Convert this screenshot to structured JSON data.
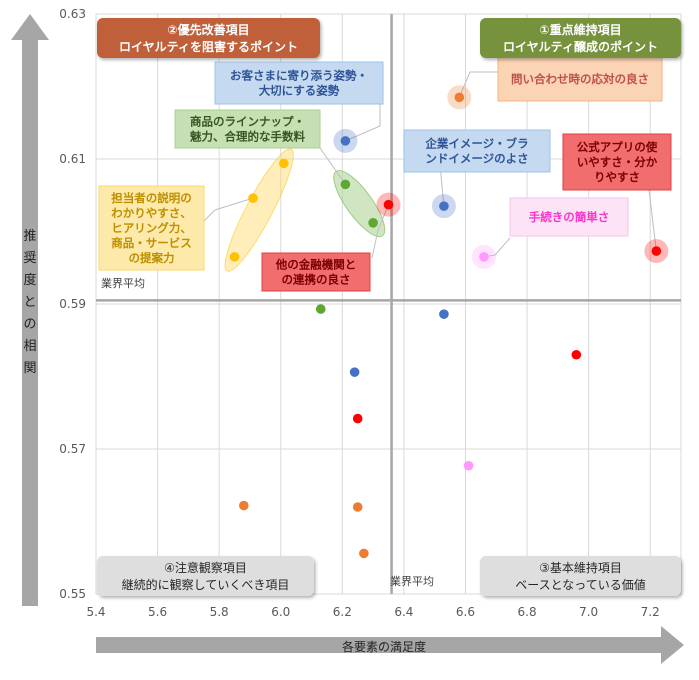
{
  "chart_data": {
    "type": "scatter",
    "xlabel": "各要素の満足度",
    "ylabel": "推奨度との相関",
    "xlim": [
      5.4,
      7.3
    ],
    "ylim": [
      0.55,
      0.63
    ],
    "xticks": [
      "5.4",
      "5.6",
      "5.8",
      "6.0",
      "6.2",
      "6.4",
      "6.6",
      "6.8",
      "7.0",
      "7.2"
    ],
    "yticks": [
      "0.55",
      "0.57",
      "0.59",
      "0.61",
      "0.63"
    ],
    "xtick_values": [
      5.4,
      5.6,
      5.8,
      6.0,
      6.2,
      6.4,
      6.6,
      6.8,
      7.0,
      7.2
    ],
    "ytick_values": [
      0.55,
      0.57,
      0.59,
      0.61,
      0.63
    ],
    "industry_avg_x": 6.36,
    "industry_avg_y": 0.5905,
    "avg_label_h": "業界平均",
    "avg_label_v": "業界平均",
    "quadrants": [
      {
        "line1": "①重点維持項目",
        "line2": "ロイヤルティ醸成のポイント",
        "color": "#76923c",
        "pos": "top-right"
      },
      {
        "line1": "②優先改善項目",
        "line2": "ロイヤルティを阻害するポイント",
        "color": "#c0603a",
        "pos": "top-left"
      },
      {
        "line1": "③基本維持項目",
        "line2": "ベースとなっている価値",
        "color": "#dedede",
        "pos": "bottom-right"
      },
      {
        "line1": "④注意観察項目",
        "line2": "継続的に観察していくべき項目",
        "color": "#dedede",
        "pos": "bottom-left"
      }
    ],
    "points": [
      {
        "x": 6.58,
        "y": 0.6185,
        "color": "#ed7d31",
        "halo": true
      },
      {
        "x": 7.22,
        "y": 0.5973,
        "color": "#ff0000",
        "halo": true
      },
      {
        "x": 6.53,
        "y": 0.6035,
        "color": "#4472c4",
        "halo": true
      },
      {
        "x": 6.66,
        "y": 0.5965,
        "color": "#ff99ff",
        "halo": true
      },
      {
        "x": 6.21,
        "y": 0.6125,
        "color": "#4472c4",
        "halo": true
      },
      {
        "x": 6.35,
        "y": 0.6037,
        "color": "#ff0000",
        "halo": true
      },
      {
        "x": 6.21,
        "y": 0.6065,
        "color": "#5ca831",
        "halo": false
      },
      {
        "x": 6.3,
        "y": 0.6012,
        "color": "#5ca831",
        "halo": false
      },
      {
        "x": 6.01,
        "y": 0.6094,
        "color": "#ffc000",
        "halo": false
      },
      {
        "x": 5.91,
        "y": 0.6046,
        "color": "#ffc000",
        "halo": false
      },
      {
        "x": 5.85,
        "y": 0.5965,
        "color": "#ffc000",
        "halo": false
      },
      {
        "x": 6.13,
        "y": 0.5893,
        "color": "#5ca831",
        "halo": false
      },
      {
        "x": 6.53,
        "y": 0.5886,
        "color": "#4472c4",
        "halo": false
      },
      {
        "x": 6.96,
        "y": 0.583,
        "color": "#ff0000",
        "halo": false
      },
      {
        "x": 6.24,
        "y": 0.5806,
        "color": "#4472c4",
        "halo": false
      },
      {
        "x": 6.25,
        "y": 0.5742,
        "color": "#ff0000",
        "halo": false
      },
      {
        "x": 6.61,
        "y": 0.5677,
        "color": "#ff99ff",
        "halo": false
      },
      {
        "x": 5.88,
        "y": 0.5622,
        "color": "#ed7d31",
        "halo": false
      },
      {
        "x": 6.25,
        "y": 0.562,
        "color": "#ed7d31",
        "halo": false
      },
      {
        "x": 6.27,
        "y": 0.5556,
        "color": "#ed7d31",
        "halo": false
      }
    ],
    "annotations": [
      {
        "lines": [
          "問い合わせ時の応対の良さ"
        ],
        "text_color": "#c0504d",
        "bg": "#fbd4b4",
        "border": "#f4b183"
      },
      {
        "lines": [
          "公式アプリの使",
          "いやすさ・分か",
          "りやすさ"
        ],
        "text_color": "#7b0000",
        "bg": "#f26d6d",
        "border": "#e04040"
      },
      {
        "lines": [
          "企業イメージ・ブラ",
          "ンドイメージのよさ"
        ],
        "text_color": "#2f5597",
        "bg": "#c5d9f1",
        "border": "#9dc3e6"
      },
      {
        "lines": [
          "手続きの簡単さ"
        ],
        "text_color": "#ff33cc",
        "bg": "#fce4f6",
        "border": "#f6c6ea"
      },
      {
        "lines": [
          "お客さまに寄り添う姿勢・",
          "大切にする姿勢"
        ],
        "text_color": "#2f5597",
        "bg": "#c5d9f1",
        "border": "#9dc3e6"
      },
      {
        "lines": [
          "商品のラインナップ・",
          "魅力、合理的な手数料"
        ],
        "text_color": "#375623",
        "bg": "#c6e0b4",
        "border": "#a9d08e"
      },
      {
        "lines": [
          "担当者の説明の",
          "わかりやすさ、",
          "ヒアリング力、",
          "商品・サービス",
          "の提案力"
        ],
        "text_color": "#bf8f00",
        "bg": "#fde9a9",
        "border": "#ffd966"
      },
      {
        "lines": [
          "他の金融機関と",
          "の連携の良さ"
        ],
        "text_color": "#7b0000",
        "bg": "#f26d6d",
        "border": "#e04040"
      }
    ]
  }
}
